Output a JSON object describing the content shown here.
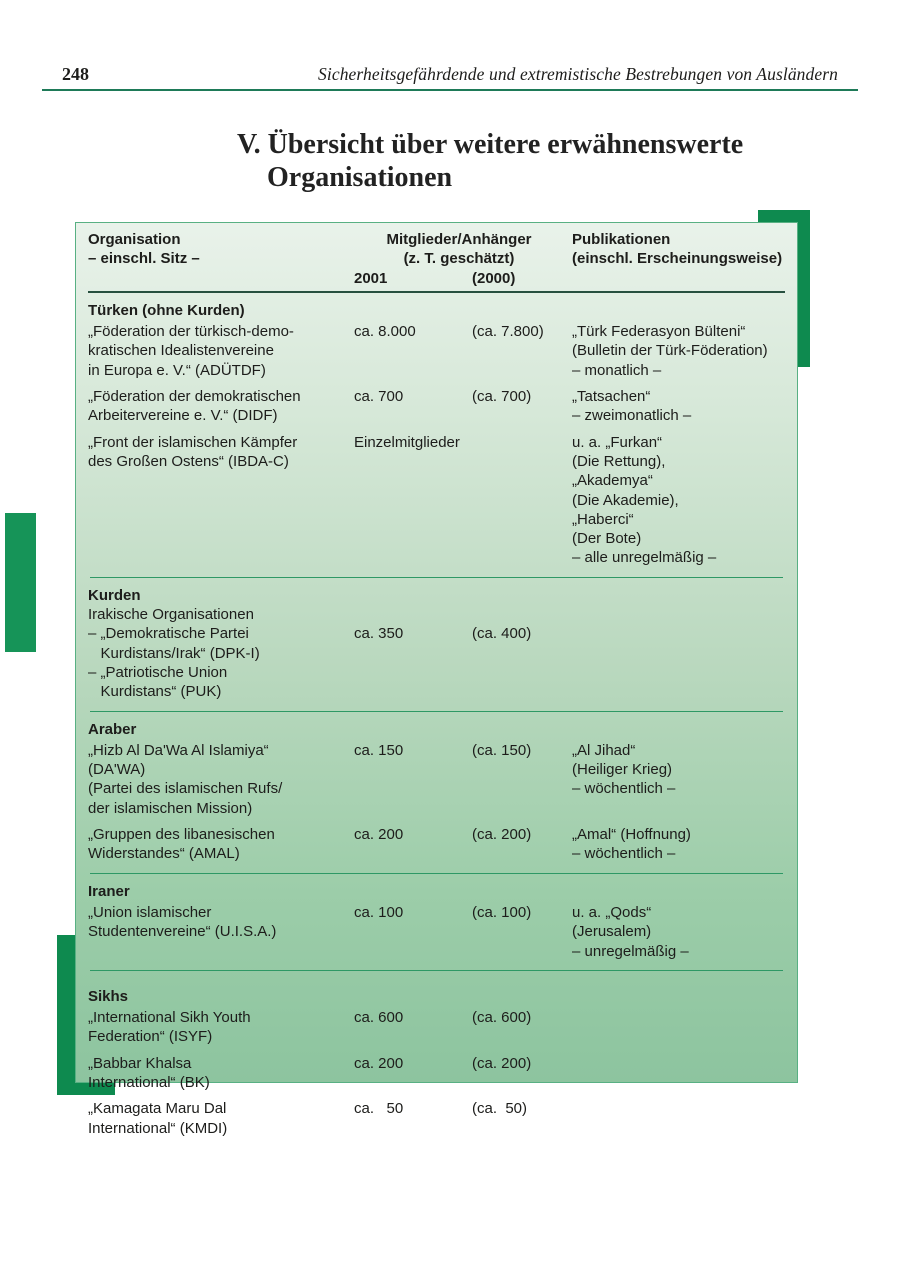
{
  "page": {
    "number": "248",
    "running_header": "Sicherheitsgefährdende und extremistische Bestrebungen von Ausländern",
    "title_line1": "V. Übersicht über weitere erwähnenswerte",
    "title_line2": "Organisationen"
  },
  "colors": {
    "accent_corner": "#0e8a4f",
    "accent_margin_bar": "#169458",
    "page_rule": "#1e7a58",
    "table_border": "#58b083",
    "table_gradient_top": "#e9f2ea",
    "table_gradient_bottom": "#8dc49f",
    "section_rule": "#2e9865",
    "text": "#1d1d1b"
  },
  "table": {
    "header": {
      "col1_line1": "Organisation",
      "col1_line2": "– einschl. Sitz –",
      "col2_line1": "Mitglieder/Anhänger",
      "col2_line2": "(z. T. geschätzt)",
      "year_2001": "2001",
      "year_2000": "(2000)",
      "col3_line1": "Publikationen",
      "col3_line2": "(einschl. Erscheinungsweise)"
    },
    "sections": [
      {
        "title": "Türken (ohne Kurden)",
        "rows": [
          {
            "org": [
              "„Föderation der türkisch-demo-",
              "kratischen Idealistenvereine",
              "in Europa e. V.“ (ADÜTDF)"
            ],
            "m2001": "ca. 8.000",
            "m2000": "(ca. 7.800)",
            "pub": [
              "„Türk Federasyon Bülteni“",
              "(Bulletin der Türk-Föderation)",
              "– monatlich –"
            ]
          },
          {
            "org": [
              "„Föderation der demokratischen",
              "Arbeitervereine e. V.“ (DIDF)"
            ],
            "m2001": "ca. 700",
            "m2000": "(ca. 700)",
            "pub": [
              "„Tatsachen“",
              "– zweimonatlich –"
            ]
          },
          {
            "org": [
              "„Front der islamischen Kämpfer",
              "des Großen Ostens“ (IBDA-C)"
            ],
            "m2001": "Einzelmitglieder",
            "m2000": "",
            "pub": [
              "u. a. „Furkan“",
              "(Die Rettung),",
              "„Akademya“",
              "(Die Akademie),",
              "„Haberci“",
              "(Der Bote)",
              "– alle unregelmäßig –"
            ]
          }
        ]
      },
      {
        "title": "Kurden",
        "subtitle": "Irakische Organisationen",
        "rows": [
          {
            "org": [
              "– „Demokratische Partei",
              "   Kurdistans/Irak“ (DPK-I)"
            ],
            "m2001": "ca. 350",
            "m2000": "(ca. 400)",
            "pub": []
          },
          {
            "org": [
              "– „Patriotische Union",
              "   Kurdistans“ (PUK)"
            ],
            "m2001": "",
            "m2000": "",
            "pub": []
          }
        ]
      },
      {
        "title": "Araber",
        "rows": [
          {
            "org": [
              "„Hizb Al Da'Wa Al Islamiya“",
              "(DA'WA)",
              "(Partei des islamischen Rufs/",
              "der islamischen Mission)"
            ],
            "m2001": "ca. 150",
            "m2000": "(ca. 150)",
            "pub": [
              "„Al Jihad“",
              "(Heiliger Krieg)",
              "– wöchentlich –"
            ]
          },
          {
            "org": [
              "„Gruppen des libanesischen",
              "Widerstandes“ (AMAL)"
            ],
            "m2001": "ca. 200",
            "m2000": "(ca. 200)",
            "pub": [
              "„Amal“ (Hoffnung)",
              "– wöchentlich –"
            ]
          }
        ]
      },
      {
        "title": "Iraner",
        "rows": [
          {
            "org": [
              "„Union islamischer",
              "Studentenvereine“ (U.I.S.A.)"
            ],
            "m2001": "ca. 100",
            "m2000": "(ca. 100)",
            "pub": [
              "u. a. „Qods“",
              "(Jerusalem)",
              "– unregelmäßig –"
            ]
          }
        ]
      },
      {
        "title": "Sikhs",
        "rows": [
          {
            "org": [
              "„International Sikh Youth",
              "Federation“ (ISYF)"
            ],
            "m2001": "ca. 600",
            "m2000": "(ca. 600)",
            "pub": []
          },
          {
            "org": [
              "„Babbar Khalsa",
              "International“ (BK)"
            ],
            "m2001": "ca. 200",
            "m2000": "(ca. 200)",
            "pub": []
          },
          {
            "org": [
              "„Kamagata Maru Dal",
              "International“ (KMDI)"
            ],
            "m2001": "ca.   50",
            "m2000": "(ca.  50)",
            "pub": []
          }
        ]
      }
    ]
  }
}
